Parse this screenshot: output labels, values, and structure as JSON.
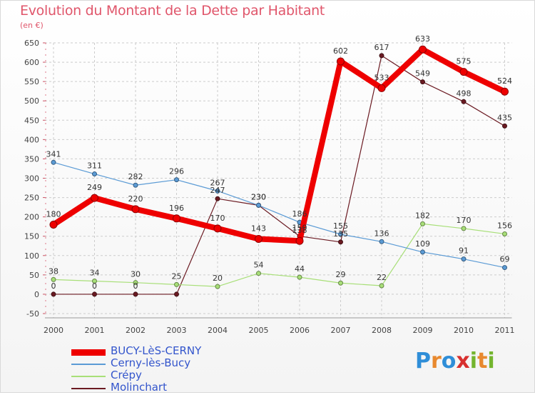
{
  "title": "Evolution du Montant de la Dette par Habitant",
  "subtitle": "(en €)",
  "logo": {
    "letters": [
      "P",
      "r",
      "o",
      "x",
      "i",
      "t",
      "i"
    ],
    "colors": [
      "#2f8ed8",
      "#e8892f",
      "#2f8ed8",
      "#d8302f",
      "#74b52f",
      "#e8892f",
      "#74b52f"
    ]
  },
  "chart_data": {
    "type": "line",
    "categories": [
      "2000",
      "2001",
      "2002",
      "2003",
      "2004",
      "2005",
      "2006",
      "2007",
      "2008",
      "2009",
      "2010",
      "2011"
    ],
    "ylim": [
      -50,
      650
    ],
    "yticks": [
      -50,
      0,
      50,
      100,
      150,
      200,
      250,
      300,
      350,
      400,
      450,
      500,
      550,
      600,
      650
    ],
    "grid": true,
    "legend_position": "bottom-left",
    "series": [
      {
        "name": "Molinchart",
        "color": "#6b1a22",
        "width": 1.2,
        "marker": 3,
        "values": [
          0,
          0,
          0,
          0,
          247,
          230,
          150,
          135,
          617,
          549,
          498,
          435
        ],
        "labels": [
          "0",
          "0",
          "0",
          "",
          "247",
          "230",
          "150",
          "135",
          "617",
          "549",
          "498",
          "435"
        ]
      },
      {
        "name": "Crépy",
        "color": "#a8df78",
        "width": 1.2,
        "marker": 3,
        "values": [
          38,
          34,
          30,
          25,
          20,
          54,
          44,
          29,
          22,
          182,
          170,
          156
        ],
        "labels": [
          "38",
          "34",
          "30",
          "25",
          "20",
          "54",
          "44",
          "29",
          "22",
          "182",
          "170",
          "156"
        ]
      },
      {
        "name": "Cerny-lès-Bucy",
        "color": "#5b9bd5",
        "width": 1.2,
        "marker": 3,
        "values": [
          341,
          311,
          282,
          296,
          267,
          230,
          186,
          155,
          136,
          109,
          91,
          69
        ],
        "labels": [
          "341",
          "311",
          "282",
          "296",
          "267",
          "230",
          "186",
          "155",
          "136",
          "109",
          "91",
          "69"
        ]
      },
      {
        "name": "BUCY-LèS-CERNY",
        "color": "#ee0000",
        "width": 8,
        "marker": 5,
        "values": [
          180,
          249,
          220,
          196,
          170,
          143,
          138,
          602,
          533,
          633,
          575,
          524
        ],
        "labels": [
          "180",
          "249",
          "220",
          "196",
          "170",
          "143",
          "138",
          "602",
          "533",
          "633",
          "575",
          "524"
        ]
      }
    ],
    "legend_order": [
      3,
      2,
      1,
      0
    ]
  }
}
